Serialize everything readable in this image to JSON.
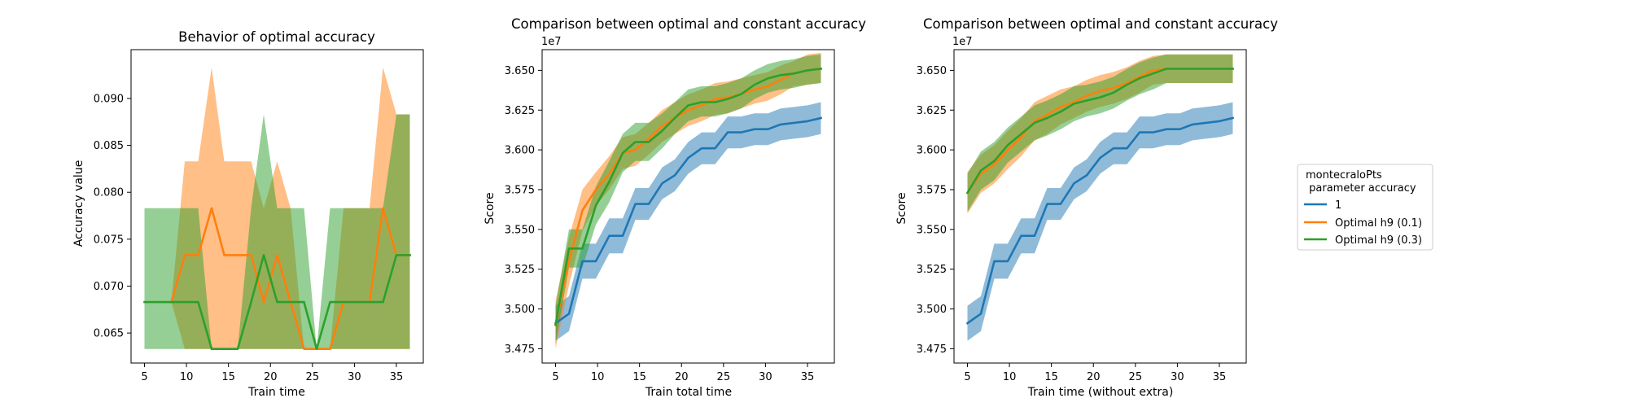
{
  "colors": {
    "blue": "#1f77b4",
    "orange": "#ff7f0e",
    "green": "#2ca02c"
  },
  "legend": {
    "title_line1": "montecraloPts",
    "title_line2": " parameter accuracy",
    "entries": [
      {
        "label": "1",
        "color": "#1f77b4"
      },
      {
        "label": "Optimal h9 (0.1)",
        "color": "#ff7f0e"
      },
      {
        "label": "Optimal h9 (0.3)",
        "color": "#2ca02c"
      }
    ],
    "placement": "right of charts"
  },
  "chart_data": [
    {
      "type": "line",
      "title": "Behavior of optimal accuracy",
      "xlabel": "Train time",
      "ylabel": "Accuracy value",
      "xlim": [
        3.4,
        38.2
      ],
      "ylim": [
        0.0618,
        0.0952
      ],
      "xticks": [
        5,
        10,
        15,
        20,
        25,
        30,
        35
      ],
      "yticks": [
        0.065,
        0.07,
        0.075,
        0.08,
        0.085,
        0.09
      ],
      "ytick_labels": [
        "0.065",
        "0.070",
        "0.075",
        "0.080",
        "0.085",
        "0.090"
      ],
      "exponent_label": "",
      "grid": false,
      "series": [
        {
          "color": "#ff7f0e",
          "x": [
            8.2,
            9.8,
            11.4,
            13.0,
            14.5,
            16.1,
            17.7,
            19.2,
            20.8,
            22.4,
            24.0,
            25.5,
            27.1,
            28.7,
            30.3,
            31.8,
            33.4,
            35.0,
            36.6
          ],
          "y": [
            0.0683,
            0.0733,
            0.0733,
            0.0783,
            0.0733,
            0.0733,
            0.0733,
            0.0683,
            0.0733,
            0.0683,
            0.0633,
            0.0633,
            0.0633,
            0.0683,
            0.0683,
            0.0683,
            0.0783,
            0.0733,
            0.0733
          ],
          "lower": [
            0.0683,
            0.0633,
            0.0633,
            0.0633,
            0.0633,
            0.0633,
            0.0633,
            0.0633,
            0.0633,
            0.0633,
            0.0633,
            0.0633,
            0.0633,
            0.0633,
            0.0633,
            0.0633,
            0.0633,
            0.0633,
            0.0633
          ],
          "upper": [
            0.0683,
            0.0833,
            0.0833,
            0.0933,
            0.0833,
            0.0833,
            0.0833,
            0.0783,
            0.0833,
            0.0783,
            0.0633,
            0.0633,
            0.0633,
            0.0783,
            0.0783,
            0.0783,
            0.0933,
            0.0883,
            0.0883
          ]
        },
        {
          "color": "#2ca02c",
          "x": [
            5.0,
            6.6,
            8.2,
            9.8,
            11.4,
            13.0,
            14.5,
            16.1,
            17.7,
            19.2,
            20.8,
            22.4,
            24.0,
            25.5,
            27.1,
            28.7,
            30.3,
            31.8,
            33.4,
            35.0,
            36.6
          ],
          "y": [
            0.0683,
            0.0683,
            0.0683,
            0.0683,
            0.0683,
            0.0633,
            0.0633,
            0.0633,
            0.0683,
            0.0733,
            0.0683,
            0.0683,
            0.0683,
            0.0633,
            0.0683,
            0.0683,
            0.0683,
            0.0683,
            0.0683,
            0.0733,
            0.0733
          ],
          "lower": [
            0.0633,
            0.0633,
            0.0633,
            0.0633,
            0.0633,
            0.0633,
            0.0633,
            0.0633,
            0.0633,
            0.0633,
            0.0633,
            0.0633,
            0.0633,
            0.0633,
            0.0633,
            0.0633,
            0.0633,
            0.0633,
            0.0633,
            0.0633,
            0.0633
          ],
          "upper": [
            0.0783,
            0.0783,
            0.0783,
            0.0783,
            0.0783,
            0.0633,
            0.0633,
            0.0633,
            0.0783,
            0.0883,
            0.0783,
            0.0783,
            0.0783,
            0.0633,
            0.0783,
            0.0783,
            0.0783,
            0.0783,
            0.0783,
            0.0883,
            0.0883
          ]
        }
      ]
    },
    {
      "type": "line",
      "title": "Comparison between optimal and constant accuracy",
      "xlabel": "Train total time",
      "ylabel": "Score",
      "xlim": [
        3.4,
        38.2
      ],
      "ylim": [
        34660000.0,
        36630000.0
      ],
      "xticks": [
        5,
        10,
        15,
        20,
        25,
        30,
        35
      ],
      "yticks": [
        34750000.0,
        35000000.0,
        35250000.0,
        35500000.0,
        35750000.0,
        36000000.0,
        36250000.0,
        36500000.0
      ],
      "ytick_labels": [
        "3.475",
        "3.500",
        "3.525",
        "3.550",
        "3.575",
        "3.600",
        "3.625",
        "3.650"
      ],
      "exponent_label": "1e7",
      "grid": false,
      "series": [
        {
          "color": "#1f77b4",
          "x": [
            5.0,
            6.6,
            8.2,
            9.8,
            11.4,
            13.0,
            14.5,
            16.1,
            17.7,
            19.2,
            20.8,
            22.4,
            24.0,
            25.5,
            27.1,
            28.7,
            30.3,
            31.8,
            33.4,
            35.0,
            36.6
          ],
          "y": [
            34910000.0,
            34970000.0,
            35300000.0,
            35300000.0,
            35460000.0,
            35460000.0,
            35660000.0,
            35660000.0,
            35790000.0,
            35840000.0,
            35950000.0,
            36010000.0,
            36010000.0,
            36110000.0,
            36110000.0,
            36130000.0,
            36130000.0,
            36160000.0,
            36170000.0,
            36180000.0,
            36200000.0
          ],
          "lower": [
            34800000.0,
            34860000.0,
            35190000.0,
            35190000.0,
            35350000.0,
            35350000.0,
            35560000.0,
            35560000.0,
            35690000.0,
            35740000.0,
            35850000.0,
            35910000.0,
            35910000.0,
            36010000.0,
            36010000.0,
            36030000.0,
            36030000.0,
            36060000.0,
            36070000.0,
            36080000.0,
            36100000.0
          ],
          "upper": [
            35020000.0,
            35080000.0,
            35410000.0,
            35410000.0,
            35570000.0,
            35570000.0,
            35760000.0,
            35760000.0,
            35890000.0,
            35940000.0,
            36050000.0,
            36110000.0,
            36110000.0,
            36210000.0,
            36210000.0,
            36230000.0,
            36230000.0,
            36260000.0,
            36270000.0,
            36280000.0,
            36300000.0
          ]
        },
        {
          "color": "#ff7f0e",
          "x": [
            5.0,
            6.6,
            8.2,
            9.8,
            11.4,
            13.0,
            14.5,
            16.1,
            17.7,
            19.2,
            20.8,
            22.4,
            24.0,
            25.5,
            27.1,
            28.7,
            30.3,
            31.8,
            33.4,
            35.0,
            36.6
          ],
          "y": [
            34900000.0,
            35300000.0,
            35620000.0,
            35750000.0,
            35850000.0,
            35980000.0,
            36000000.0,
            36070000.0,
            36150000.0,
            36200000.0,
            36250000.0,
            36280000.0,
            36320000.0,
            36330000.0,
            36350000.0,
            36380000.0,
            36400000.0,
            36440000.0,
            36480000.0,
            36500000.0,
            36510000.0
          ],
          "lower": [
            34750000.0,
            35150000.0,
            35490000.0,
            35650000.0,
            35750000.0,
            35880000.0,
            35900000.0,
            35970000.0,
            36050000.0,
            36100000.0,
            36150000.0,
            36180000.0,
            36220000.0,
            36230000.0,
            36260000.0,
            36290000.0,
            36310000.0,
            36350000.0,
            36400000.0,
            36410000.0,
            36420000.0
          ],
          "upper": [
            35050000.0,
            35450000.0,
            35750000.0,
            35860000.0,
            35960000.0,
            36080000.0,
            36100000.0,
            36170000.0,
            36250000.0,
            36300000.0,
            36350000.0,
            36380000.0,
            36420000.0,
            36430000.0,
            36450000.0,
            36470000.0,
            36490000.0,
            36530000.0,
            36560000.0,
            36600000.0,
            36610000.0
          ]
        },
        {
          "color": "#2ca02c",
          "x": [
            5.0,
            6.6,
            8.2,
            9.8,
            11.4,
            13.0,
            14.5,
            16.1,
            17.7,
            19.2,
            20.8,
            22.4,
            24.0,
            25.5,
            27.1,
            28.7,
            30.3,
            31.8,
            33.4,
            35.0,
            36.6
          ],
          "y": [
            34900000.0,
            35380000.0,
            35380000.0,
            35650000.0,
            35800000.0,
            35980000.0,
            36050000.0,
            36050000.0,
            36120000.0,
            36200000.0,
            36280000.0,
            36300000.0,
            36300000.0,
            36320000.0,
            36350000.0,
            36410000.0,
            36450000.0,
            36470000.0,
            36480000.0,
            36500000.0,
            36510000.0
          ],
          "lower": [
            34780000.0,
            35260000.0,
            35260000.0,
            35530000.0,
            35670000.0,
            35860000.0,
            35930000.0,
            35930000.0,
            36010000.0,
            36100000.0,
            36180000.0,
            36210000.0,
            36210000.0,
            36230000.0,
            36260000.0,
            36320000.0,
            36360000.0,
            36380000.0,
            36390000.0,
            36410000.0,
            36420000.0
          ],
          "upper": [
            35020000.0,
            35500000.0,
            35500000.0,
            35770000.0,
            35930000.0,
            36100000.0,
            36170000.0,
            36170000.0,
            36230000.0,
            36300000.0,
            36380000.0,
            36400000.0,
            36400000.0,
            36420000.0,
            36450000.0,
            36500000.0,
            36540000.0,
            36560000.0,
            36570000.0,
            36590000.0,
            36600000.0
          ]
        }
      ]
    },
    {
      "type": "line",
      "title": "Comparison between optimal and constant accuracy",
      "xlabel": "Train time (without extra)",
      "ylabel": "Score",
      "xlim": [
        3.4,
        38.2
      ],
      "ylim": [
        34660000.0,
        36630000.0
      ],
      "xticks": [
        5,
        10,
        15,
        20,
        25,
        30,
        35
      ],
      "yticks": [
        34750000.0,
        35000000.0,
        35250000.0,
        35500000.0,
        35750000.0,
        36000000.0,
        36250000.0,
        36500000.0
      ],
      "ytick_labels": [
        "3.475",
        "3.500",
        "3.525",
        "3.550",
        "3.575",
        "3.600",
        "3.625",
        "3.650"
      ],
      "exponent_label": "1e7",
      "grid": false,
      "series": [
        {
          "color": "#1f77b4",
          "x": [
            5.0,
            6.6,
            8.2,
            9.8,
            11.4,
            13.0,
            14.5,
            16.1,
            17.7,
            19.2,
            20.8,
            22.4,
            24.0,
            25.5,
            27.1,
            28.7,
            30.3,
            31.8,
            33.4,
            35.0,
            36.6
          ],
          "y": [
            34910000.0,
            34970000.0,
            35300000.0,
            35300000.0,
            35460000.0,
            35460000.0,
            35660000.0,
            35660000.0,
            35790000.0,
            35840000.0,
            35950000.0,
            36010000.0,
            36010000.0,
            36110000.0,
            36110000.0,
            36130000.0,
            36130000.0,
            36160000.0,
            36170000.0,
            36180000.0,
            36200000.0
          ],
          "lower": [
            34800000.0,
            34860000.0,
            35190000.0,
            35190000.0,
            35350000.0,
            35350000.0,
            35560000.0,
            35560000.0,
            35690000.0,
            35740000.0,
            35850000.0,
            35910000.0,
            35910000.0,
            36010000.0,
            36010000.0,
            36030000.0,
            36030000.0,
            36060000.0,
            36070000.0,
            36080000.0,
            36100000.0
          ],
          "upper": [
            35020000.0,
            35080000.0,
            35410000.0,
            35410000.0,
            35570000.0,
            35570000.0,
            35760000.0,
            35760000.0,
            35890000.0,
            35940000.0,
            36050000.0,
            36110000.0,
            36110000.0,
            36210000.0,
            36210000.0,
            36230000.0,
            36230000.0,
            36260000.0,
            36270000.0,
            36280000.0,
            36300000.0
          ]
        },
        {
          "color": "#ff7f0e",
          "x": [
            5.0,
            6.6,
            8.2,
            9.8,
            11.4,
            13.0,
            14.5,
            16.1,
            17.7,
            19.2,
            20.8,
            22.4,
            24.0,
            25.5,
            27.1,
            28.7,
            30.3,
            31.8,
            33.4,
            35.0,
            36.6
          ],
          "y": [
            35730000.0,
            35850000.0,
            35910000.0,
            36000000.0,
            36080000.0,
            36180000.0,
            36220000.0,
            36270000.0,
            36300000.0,
            36340000.0,
            36370000.0,
            36390000.0,
            36420000.0,
            36460000.0,
            36500000.0,
            36510000.0,
            36510000.0,
            36510000.0,
            36510000.0,
            36510000.0,
            36510000.0
          ],
          "lower": [
            35600000.0,
            35730000.0,
            35790000.0,
            35880000.0,
            35960000.0,
            36060000.0,
            36100000.0,
            36160000.0,
            36200000.0,
            36240000.0,
            36270000.0,
            36290000.0,
            36320000.0,
            36360000.0,
            36410000.0,
            36420000.0,
            36420000.0,
            36420000.0,
            36420000.0,
            36420000.0,
            36420000.0
          ],
          "upper": [
            35860000.0,
            35970000.0,
            36030000.0,
            36120000.0,
            36200000.0,
            36300000.0,
            36340000.0,
            36380000.0,
            36400000.0,
            36440000.0,
            36470000.0,
            36490000.0,
            36520000.0,
            36560000.0,
            36590000.0,
            36600000.0,
            36600000.0,
            36600000.0,
            36600000.0,
            36600000.0,
            36600000.0
          ]
        },
        {
          "color": "#2ca02c",
          "x": [
            5.0,
            6.6,
            8.2,
            9.8,
            11.4,
            13.0,
            14.5,
            16.1,
            17.7,
            19.2,
            20.8,
            22.4,
            24.0,
            25.5,
            27.1,
            28.7,
            30.3,
            31.8,
            33.4,
            35.0,
            36.6
          ],
          "y": [
            35730000.0,
            35870000.0,
            35930000.0,
            36030000.0,
            36100000.0,
            36170000.0,
            36200000.0,
            36240000.0,
            36290000.0,
            36310000.0,
            36330000.0,
            36360000.0,
            36410000.0,
            36450000.0,
            36480000.0,
            36510000.0,
            36510000.0,
            36510000.0,
            36510000.0,
            36510000.0,
            36510000.0
          ],
          "lower": [
            35610000.0,
            35750000.0,
            35810000.0,
            35920000.0,
            35990000.0,
            36060000.0,
            36090000.0,
            36130000.0,
            36180000.0,
            36210000.0,
            36230000.0,
            36260000.0,
            36310000.0,
            36350000.0,
            36380000.0,
            36420000.0,
            36420000.0,
            36420000.0,
            36420000.0,
            36420000.0,
            36420000.0
          ],
          "upper": [
            35850000.0,
            35990000.0,
            36050000.0,
            36140000.0,
            36210000.0,
            36280000.0,
            36310000.0,
            36350000.0,
            36400000.0,
            36410000.0,
            36430000.0,
            36460000.0,
            36510000.0,
            36550000.0,
            36580000.0,
            36600000.0,
            36600000.0,
            36600000.0,
            36600000.0,
            36600000.0,
            36600000.0
          ]
        }
      ]
    }
  ]
}
